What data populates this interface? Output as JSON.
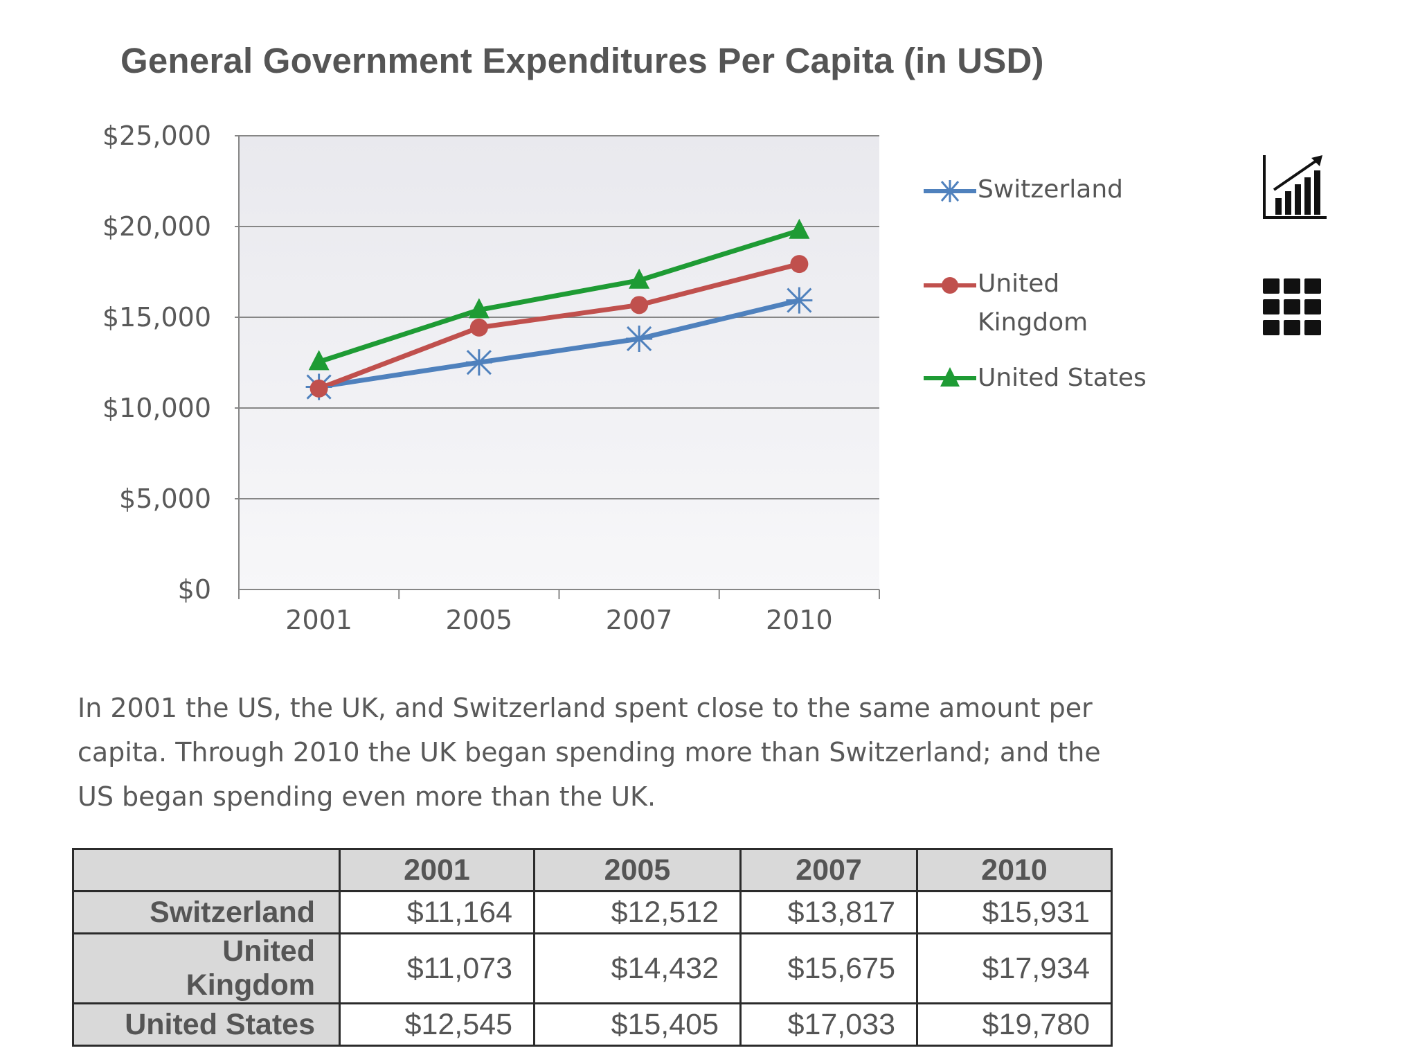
{
  "chart_data": {
    "type": "line",
    "title": "General Government Expenditures Per Capita (in USD)",
    "categories": [
      "2001",
      "2005",
      "2007",
      "2010"
    ],
    "ylim": [
      0,
      25000
    ],
    "yticks": [
      0,
      5000,
      10000,
      15000,
      20000,
      25000
    ],
    "ytick_labels": [
      "$0",
      "$5,000",
      "$10,000",
      "$15,000",
      "$20,000",
      "$25,000"
    ],
    "grid": true,
    "legend_position": "right",
    "series": [
      {
        "name": "Switzerland",
        "values": [
          11164,
          12512,
          13817,
          15931
        ],
        "color": "#4f81bd",
        "marker": "star"
      },
      {
        "name": "United Kingdom",
        "values": [
          11073,
          14432,
          15675,
          17934
        ],
        "color": "#c0504d",
        "marker": "circle"
      },
      {
        "name": "United States",
        "values": [
          12545,
          15405,
          17033,
          19780
        ],
        "color": "#1e9b34",
        "marker": "triangle"
      }
    ]
  },
  "legend": {
    "switzerland": "Switzerland",
    "uk_line1": "United",
    "uk_line2": "Kingdom",
    "us": "United States"
  },
  "caption": "In 2001 the US, the UK, and Switzerland spent close to the same amount per capita. Through 2010 the UK began spending more than Switzerland; and the US began spending even more than the UK.",
  "table": {
    "headers": [
      "",
      "2001",
      "2005",
      "2007",
      "2010"
    ],
    "rows": [
      {
        "label": "Switzerland",
        "cells": [
          "$11,164",
          "$12,512",
          "$13,817",
          "$15,931"
        ]
      },
      {
        "label": "United Kingdom",
        "cells": [
          "$11,073",
          "$14,432",
          "$15,675",
          "$17,934"
        ]
      },
      {
        "label": "United States",
        "cells": [
          "$12,545",
          "$15,405",
          "$17,033",
          "$19,780"
        ]
      }
    ]
  },
  "icons": {
    "chart_view": "bar-chart-trend-icon",
    "table_view": "grid-icon"
  }
}
